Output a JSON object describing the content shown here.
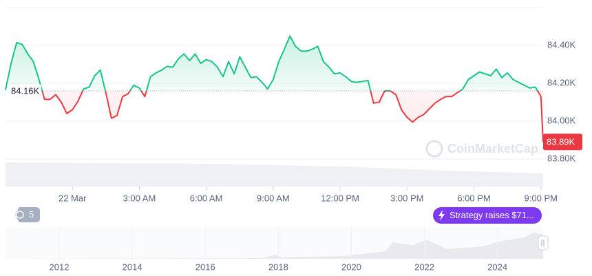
{
  "chart_data": {
    "type": "line",
    "xlim": [
      -3,
      21.1
    ],
    "ylim": [
      83800,
      84600
    ],
    "xticks": [
      {
        "value": 0,
        "label": "22 Mar"
      },
      {
        "value": 3,
        "label": "3:00 AM"
      },
      {
        "value": 6,
        "label": "6:00 AM"
      },
      {
        "value": 9,
        "label": "9:00 AM"
      },
      {
        "value": 12,
        "label": "12:00 PM"
      },
      {
        "value": 15,
        "label": "3:00 PM"
      },
      {
        "value": 18,
        "label": "6:00 PM"
      },
      {
        "value": 21,
        "label": "9:00 PM"
      }
    ],
    "yticks": [
      {
        "value": 83800,
        "label": "83.80K"
      },
      {
        "value": 84000,
        "label": "84.00K"
      },
      {
        "value": 84200,
        "label": "84.20K"
      },
      {
        "value": 84400,
        "label": "84.40K"
      }
    ],
    "grid": true,
    "color_up": "#16c784",
    "color_down": "#ea3943",
    "baseline": {
      "value": 84160,
      "label": "84.16K"
    },
    "last_price": {
      "value": 83890,
      "label": "83.89K"
    },
    "series": [
      {
        "x": [
          -3.0,
          -2.75,
          -2.5,
          -2.25,
          -2.0,
          -1.75,
          -1.5,
          -1.25,
          -1.0,
          -0.75,
          -0.5,
          -0.25,
          0,
          0.25,
          0.5,
          0.75,
          1.0,
          1.25,
          1.5,
          1.75,
          2.0,
          2.25,
          2.5,
          2.75,
          3.0,
          3.25,
          3.5,
          3.75,
          4.0,
          4.25,
          4.5,
          4.75,
          5.0,
          5.25,
          5.5,
          5.75,
          6.0,
          6.25,
          6.5,
          6.75,
          7.0,
          7.25,
          7.5,
          7.75,
          8.0,
          8.25,
          8.5,
          8.75,
          9.0,
          9.25,
          9.5,
          9.75,
          10.0,
          10.25,
          10.5,
          10.75,
          11.0,
          11.25,
          11.5,
          11.75,
          12.0,
          12.25,
          12.5,
          12.75,
          13.0,
          13.25,
          13.5,
          13.75,
          14.0,
          14.25,
          14.5,
          14.75,
          15.0,
          15.25,
          15.5,
          15.75,
          16.0,
          16.25,
          16.5,
          16.75,
          17.0,
          17.25,
          17.5,
          17.75,
          18.0,
          18.25,
          18.5,
          18.75,
          19.0,
          19.25,
          19.5,
          19.75,
          20.0,
          20.25,
          20.5,
          20.75,
          21.0,
          21.1
        ],
        "values": [
          84165,
          84305,
          84415,
          84405,
          84355,
          84315,
          84220,
          84115,
          84115,
          84140,
          84100,
          84040,
          84060,
          84105,
          84170,
          84180,
          84240,
          84270,
          84150,
          84015,
          84030,
          84130,
          84145,
          84190,
          84175,
          84130,
          84235,
          84255,
          84270,
          84290,
          84285,
          84330,
          84355,
          84320,
          84355,
          84305,
          84325,
          84315,
          84285,
          84235,
          84315,
          84250,
          84340,
          84285,
          84230,
          84235,
          84205,
          84170,
          84220,
          84315,
          84380,
          84450,
          84395,
          84370,
          84370,
          84380,
          84395,
          84315,
          84285,
          84250,
          84255,
          84235,
          84210,
          84205,
          84210,
          84215,
          84095,
          84100,
          84160,
          84160,
          84140,
          84060,
          84020,
          83995,
          84020,
          84035,
          84065,
          84095,
          84115,
          84130,
          84130,
          84150,
          84170,
          84220,
          84240,
          84260,
          84250,
          84240,
          84275,
          84230,
          84255,
          84220,
          84205,
          84190,
          84175,
          84180,
          84130,
          83890
        ]
      }
    ],
    "watermark": "CoinMarketCap",
    "event_count": 5,
    "event_label": "Strategy raises $71...",
    "navigator": {
      "xlim": [
        2010.53,
        2025.25
      ],
      "xticks": [
        2012,
        2014,
        2016,
        2018,
        2020,
        2022,
        2024
      ]
    }
  }
}
